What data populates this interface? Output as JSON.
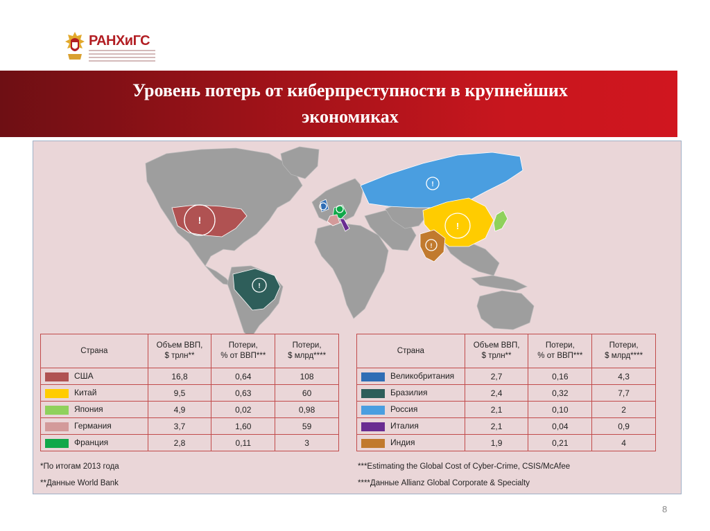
{
  "logo": {
    "text": "РАНХиГС"
  },
  "title": {
    "line1": "Уровень потерь от киберпреступности в крупнейших",
    "line2": "экономиках"
  },
  "table_left": {
    "headers": [
      "Страна",
      "Объем ВВП,\n$ трлн**",
      "Потери,\n% от ВВП***",
      "Потери,\n$ млрд****"
    ],
    "rows": [
      {
        "country": "США",
        "color": "#b05252",
        "gdp": "16,8",
        "loss_pct": "0,64",
        "loss_bn": "108"
      },
      {
        "country": "Китай",
        "color": "#ffcc00",
        "gdp": "9,5",
        "loss_pct": "0,63",
        "loss_bn": "60"
      },
      {
        "country": "Япония",
        "color": "#8fd15c",
        "gdp": "4,9",
        "loss_pct": "0,02",
        "loss_bn": "0,98"
      },
      {
        "country": "Германия",
        "color": "#d39a9a",
        "gdp": "3,7",
        "loss_pct": "1,60",
        "loss_bn": "59"
      },
      {
        "country": "Франция",
        "color": "#10a84a",
        "gdp": "2,8",
        "loss_pct": "0,11",
        "loss_bn": "3"
      }
    ]
  },
  "table_right": {
    "headers": [
      "Страна",
      "Объем ВВП,\n$ трлн**",
      "Потери,\n% от ВВП***",
      "Потери,\n$ млрд****"
    ],
    "rows": [
      {
        "country": "Великобритания",
        "color": "#2f6db5",
        "gdp": "2,7",
        "loss_pct": "0,16",
        "loss_bn": "4,3"
      },
      {
        "country": "Бразилия",
        "color": "#2e5e5a",
        "gdp": "2,4",
        "loss_pct": "0,32",
        "loss_bn": "7,7"
      },
      {
        "country": "Россия",
        "color": "#4a9ee0",
        "gdp": "2,1",
        "loss_pct": "0,10",
        "loss_bn": "2"
      },
      {
        "country": "Италия",
        "color": "#6a2c91",
        "gdp": "2,1",
        "loss_pct": "0,04",
        "loss_bn": "0,9"
      },
      {
        "country": "Индия",
        "color": "#c17a2e",
        "gdp": "1,9",
        "loss_pct": "0,21",
        "loss_bn": "4"
      }
    ]
  },
  "notes": {
    "n1": "*По итогам 2013 года",
    "n2": "**Данные World Bank",
    "n3": "***Estimating the Global Cost of Cyber-Crime, CSIS/McAfee",
    "n4": "****Данные Allianz Global Corporate & Specialty"
  },
  "map_marker_symbol": "!",
  "page_number": "8",
  "colors": {
    "banner": "#c8161e",
    "table_border": "#c14a4a",
    "panel_bg": "#ead6d8",
    "land": "#9e9e9e"
  }
}
